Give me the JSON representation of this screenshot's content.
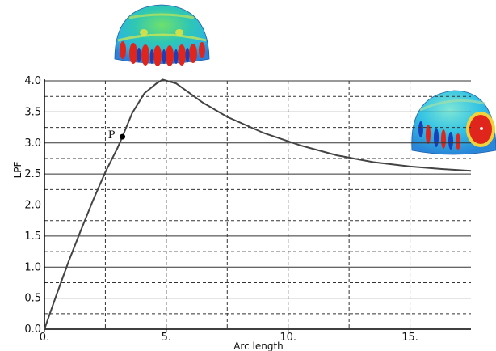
{
  "chart_data": {
    "type": "line",
    "xlabel": "Arc length",
    "ylabel": "LPF",
    "xlim": [
      0,
      17.5
    ],
    "ylim": [
      0,
      4.0
    ],
    "x_ticks": [
      0,
      5,
      10,
      15
    ],
    "x_tick_labels": [
      "0.",
      "5.",
      "10.",
      "15."
    ],
    "y_ticks": [
      0.0,
      0.5,
      1.0,
      1.5,
      2.0,
      2.5,
      3.0,
      3.5,
      4.0
    ],
    "y_tick_labels": [
      "0.0",
      "0.5",
      "1.0",
      "1.5",
      "2.0",
      "2.5",
      "3.0",
      "3.5",
      "4.0"
    ],
    "grid": true,
    "series": [
      {
        "x": [
          0,
          0.5,
          1.0,
          1.5,
          2.0,
          2.5,
          3.0,
          3.2,
          3.6,
          4.1,
          4.6,
          4.85,
          5.4,
          6.5,
          7.5,
          9.0,
          10.5,
          12.0,
          13.5,
          15.0,
          16.3,
          17.5
        ],
        "y": [
          0,
          0.56,
          1.1,
          1.6,
          2.08,
          2.53,
          2.92,
          3.1,
          3.48,
          3.8,
          3.96,
          4.02,
          3.96,
          3.65,
          3.42,
          3.16,
          2.96,
          2.8,
          2.69,
          2.62,
          2.58,
          2.55
        ]
      }
    ],
    "annotations": [
      {
        "label": "P",
        "x": 3.2,
        "y": 3.1
      }
    ],
    "colors": {
      "line": "#444444",
      "grid": "#333333",
      "axis": "#000000"
    }
  }
}
